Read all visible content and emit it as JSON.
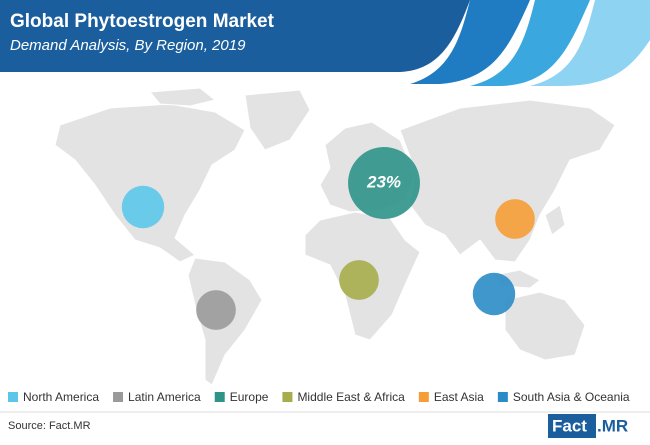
{
  "chart_data": {
    "type": "bubble-map",
    "title": "Global Phytoestrogen Market",
    "subtitle": "Demand Analysis, By Region, 2019",
    "categories": [
      "North America",
      "Latin America",
      "Europe",
      "Middle East & Africa",
      "East Asia",
      "South Asia & Oceania"
    ],
    "values": [
      8,
      7,
      23,
      7,
      7,
      8
    ],
    "value_labels": [
      null,
      null,
      "23%",
      null,
      null,
      null
    ],
    "colors": [
      "#5bc6ea",
      "#9a9a9a",
      "#2e9488",
      "#a6ad4a",
      "#f59d36",
      "#2a8cc6"
    ]
  },
  "source": "Source: Fact.MR",
  "logo": [
    "Fact",
    ".MR"
  ]
}
